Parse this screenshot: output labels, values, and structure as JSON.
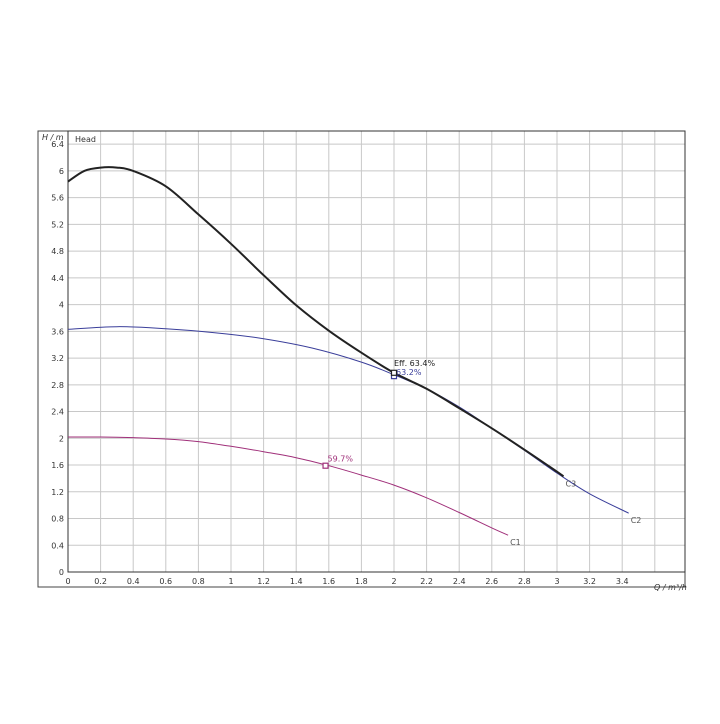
{
  "chart_data": {
    "type": "line",
    "title": "",
    "panel_label": "Head",
    "ylabel": "H / m",
    "xlabel": "Q / m³/h",
    "xlim": [
      0,
      3.7
    ],
    "ylim": [
      0,
      6.5
    ],
    "grid": true,
    "x_ticks": [
      "0",
      "0.2",
      "0.4",
      "0.6",
      "0.8",
      "1",
      "1.2",
      "1.4",
      "1.6",
      "1.8",
      "2",
      "2.2",
      "2.4",
      "2.6",
      "2.8",
      "3",
      "3.2",
      "3.4"
    ],
    "y_ticks": [
      "0",
      "0.4",
      "0.8",
      "1.2",
      "1.6",
      "2",
      "2.4",
      "2.8",
      "3.2",
      "3.6",
      "4",
      "4.4",
      "4.8",
      "5.2",
      "5.6",
      "6",
      "6.4"
    ],
    "series": [
      {
        "name": "C1",
        "color": "#a0307a",
        "x": [
          0,
          0.2,
          0.4,
          0.6,
          0.8,
          1.0,
          1.2,
          1.4,
          1.6,
          1.8,
          2.0,
          2.2,
          2.4,
          2.6,
          2.7
        ],
        "y": [
          2.02,
          2.02,
          2.01,
          1.99,
          1.95,
          1.88,
          1.8,
          1.71,
          1.59,
          1.45,
          1.3,
          1.11,
          0.89,
          0.66,
          0.55
        ]
      },
      {
        "name": "C2",
        "color": "#3a3e9a",
        "x": [
          0,
          0.3,
          0.6,
          0.9,
          1.2,
          1.5,
          1.8,
          2.0,
          2.2,
          2.4,
          2.6,
          2.8,
          3.0,
          3.2,
          3.44
        ],
        "y": [
          3.63,
          3.67,
          3.64,
          3.58,
          3.49,
          3.35,
          3.14,
          2.95,
          2.74,
          2.47,
          2.15,
          1.82,
          1.48,
          1.17,
          0.88
        ]
      },
      {
        "name": "C3",
        "color": "#222222",
        "x": [
          0,
          0.1,
          0.2,
          0.3,
          0.4,
          0.6,
          0.8,
          1.0,
          1.2,
          1.4,
          1.6,
          1.8,
          2.0,
          2.2,
          2.4,
          2.6,
          2.8,
          3.0,
          3.04
        ],
        "y": [
          5.84,
          6.0,
          6.05,
          6.05,
          6.0,
          5.77,
          5.35,
          4.91,
          4.44,
          3.99,
          3.61,
          3.28,
          2.98,
          2.74,
          2.45,
          2.15,
          1.83,
          1.5,
          1.43
        ]
      }
    ],
    "markers": [
      {
        "x": 1.58,
        "y": 1.59,
        "label": "59.7%",
        "color": "#a0307a"
      },
      {
        "x": 2.0,
        "y": 2.93,
        "label": "63.2%",
        "color": "#3a3e9a"
      },
      {
        "x": 2.0,
        "y": 2.98,
        "label": "Eff. 63.4%",
        "color": "#222222"
      }
    ]
  }
}
